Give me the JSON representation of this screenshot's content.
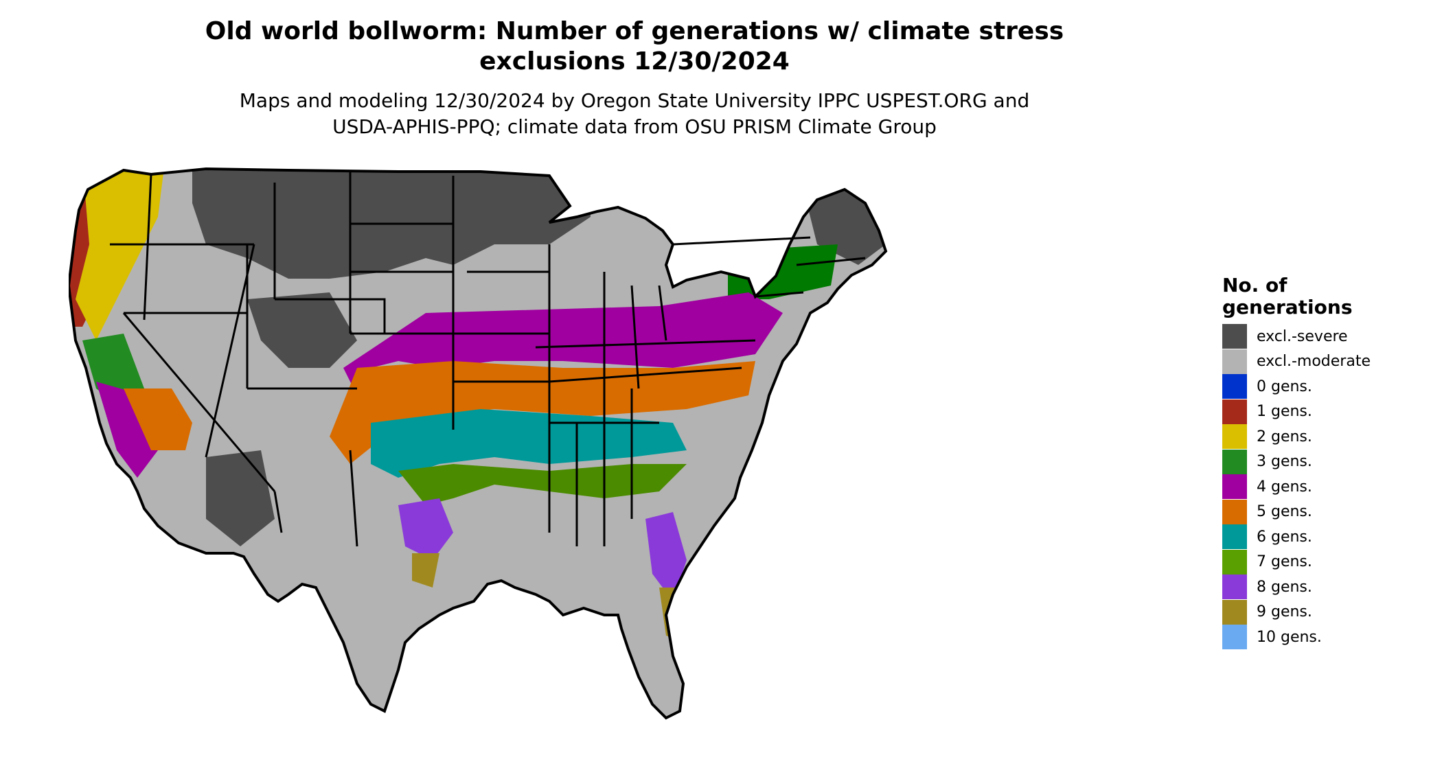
{
  "title": {
    "line1": "Old world bollworm: Number of generations w/ climate stress",
    "line2": "exclusions 12/30/2024"
  },
  "subtitle": {
    "line1": "Maps and modeling 12/30/2024 by Oregon State University IPPC USPEST.ORG and",
    "line2": "USDA-APHIS-PPQ; climate data from OSU PRISM Climate Group"
  },
  "legend": {
    "title_line1": "No. of",
    "title_line2": "generations",
    "items": [
      {
        "label": "excl.-severe",
        "color": "#4d4d4d"
      },
      {
        "label": "excl.-moderate",
        "color": "#b3b3b3"
      },
      {
        "label": "0 gens.",
        "color": "#0033cc"
      },
      {
        "label": "1 gens.",
        "color": "#a52a1a"
      },
      {
        "label": "2 gens.",
        "color": "#d9bf00"
      },
      {
        "label": "3 gens.",
        "color": "#228b22"
      },
      {
        "label": "4 gens.",
        "color": "#a000a0"
      },
      {
        "label": "5 gens.",
        "color": "#d96c00"
      },
      {
        "label": "6 gens.",
        "color": "#009999"
      },
      {
        "label": "7 gens.",
        "color": "#5aa000"
      },
      {
        "label": "8 gens.",
        "color": "#8a3ad9"
      },
      {
        "label": "9 gens.",
        "color": "#a08a20"
      },
      {
        "label": "10 gens.",
        "color": "#6aaaf0"
      }
    ]
  },
  "map": {
    "region": "contiguous United States",
    "border_color": "#000000"
  }
}
